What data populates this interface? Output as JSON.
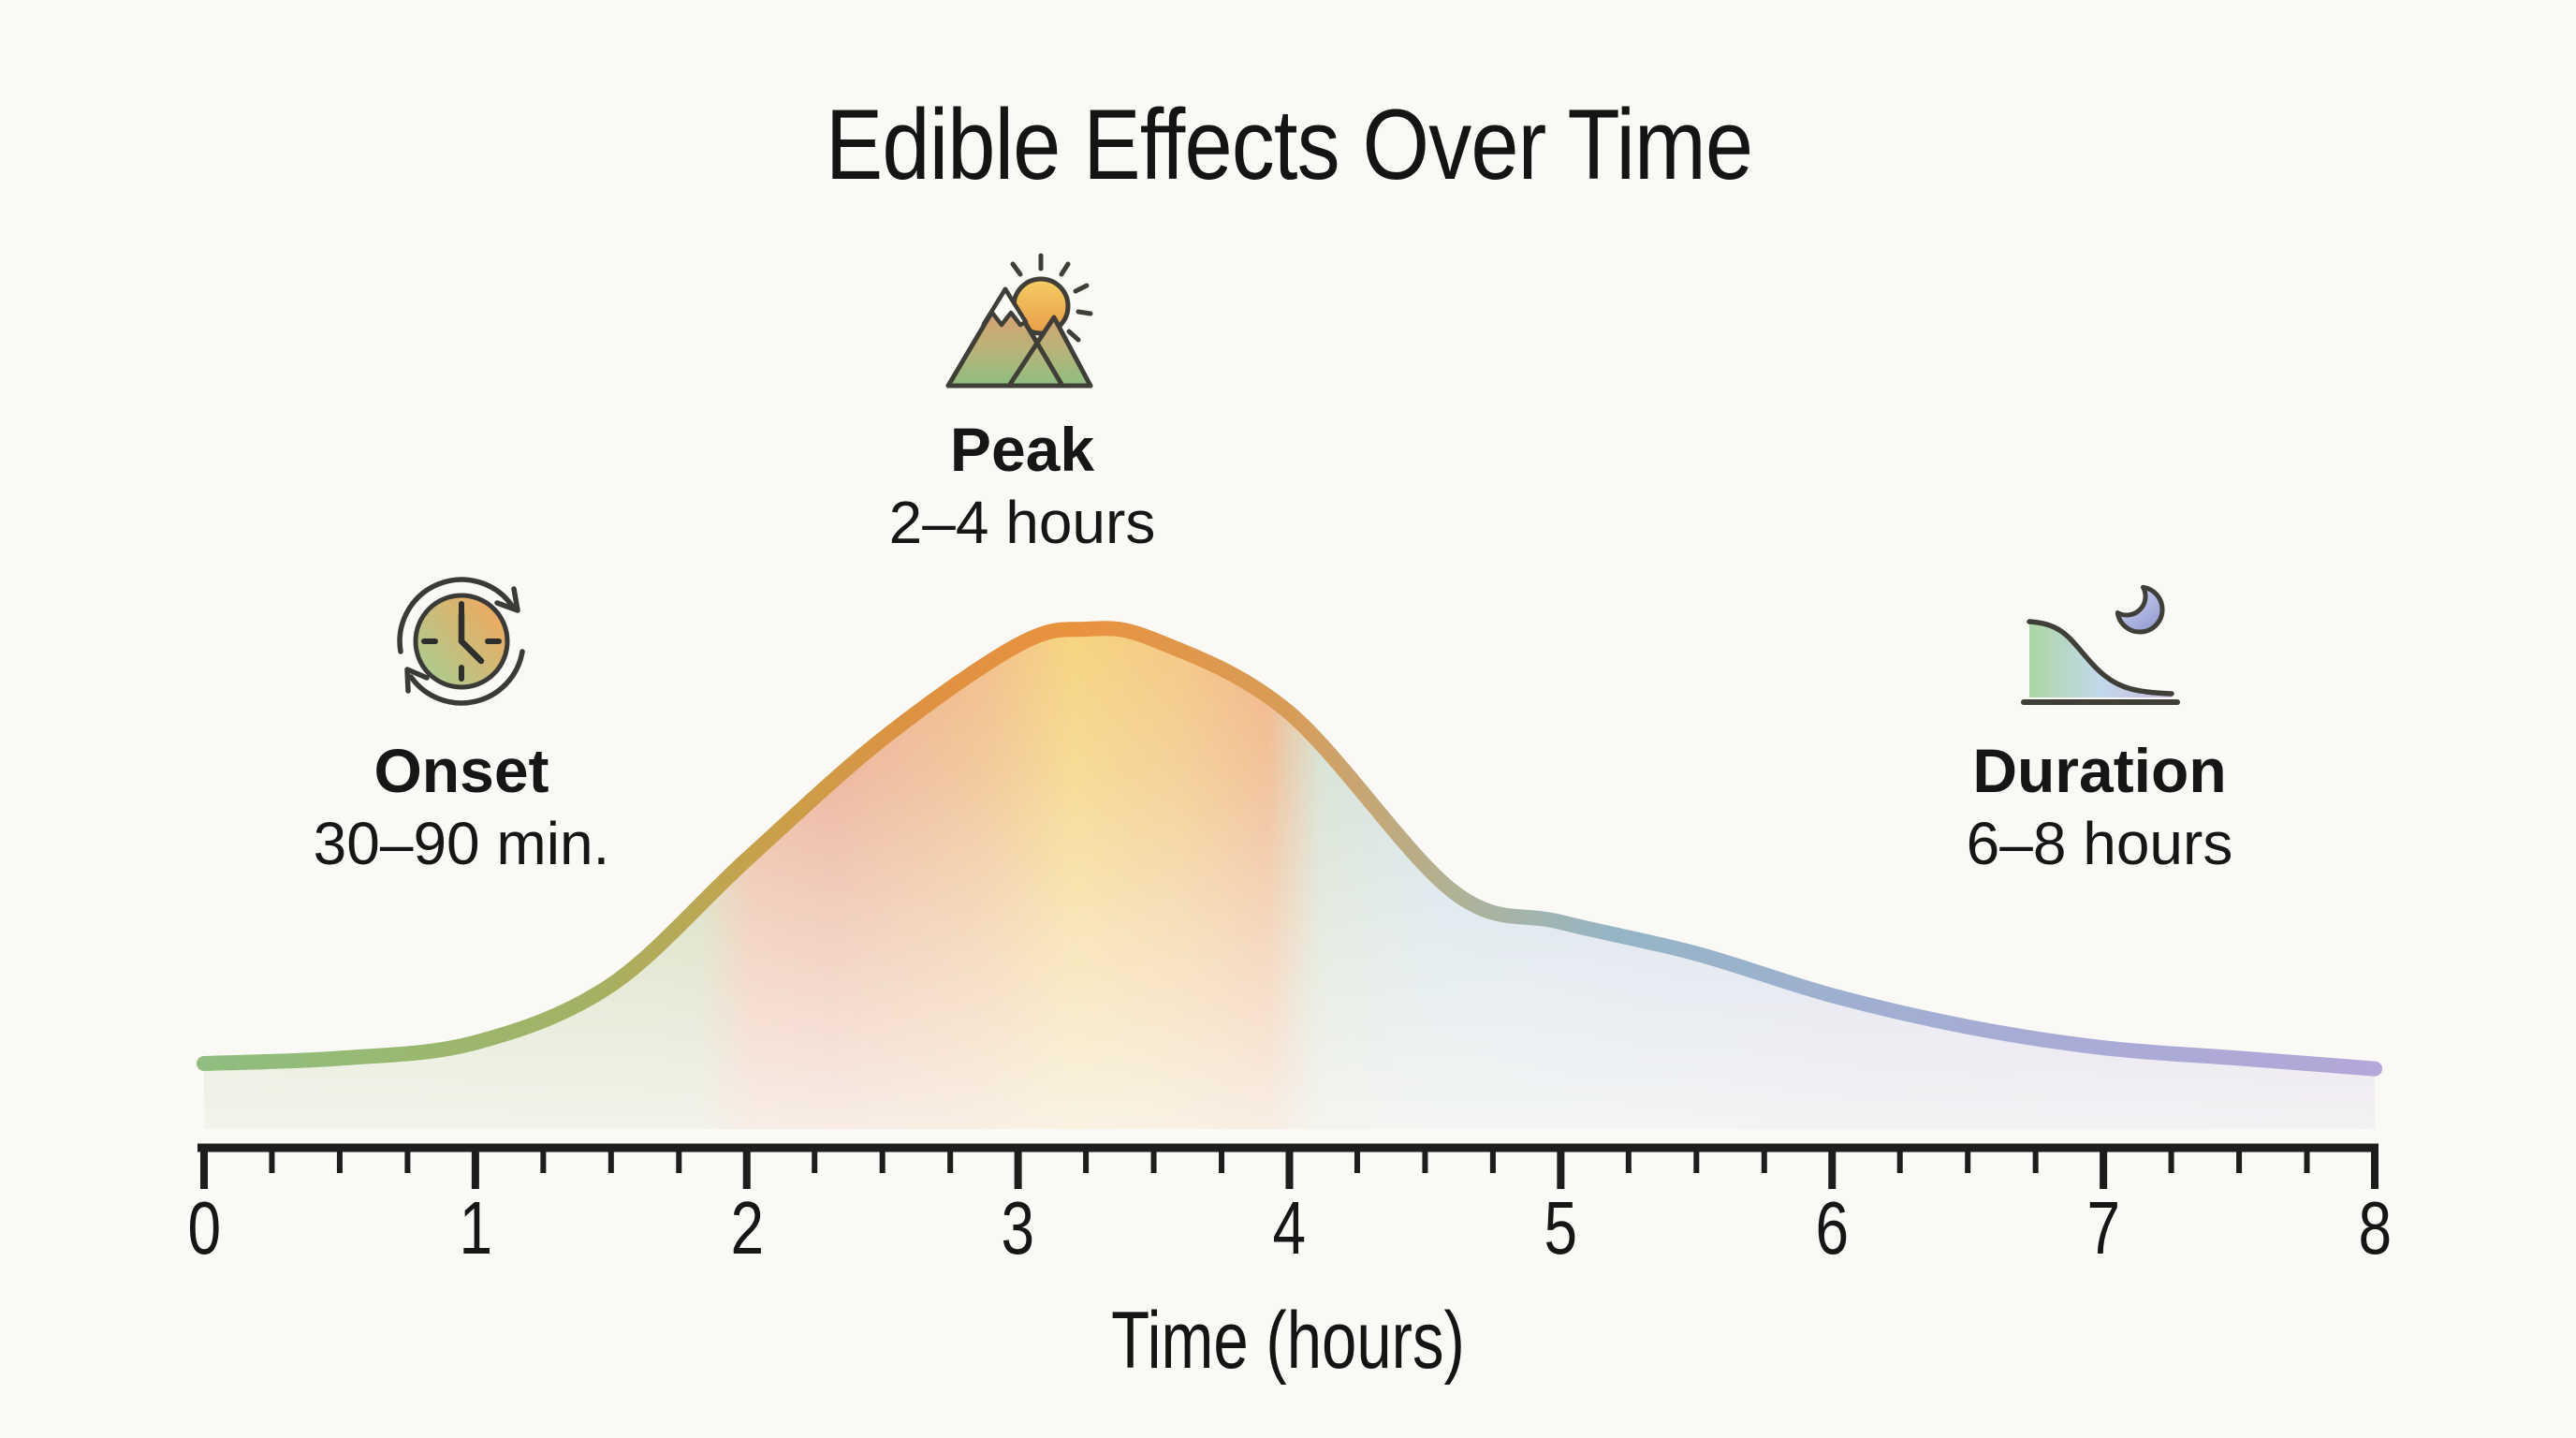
{
  "title": "Edible Effects Over Time",
  "colors": {
    "background": "#faf9f6",
    "text": "#1c1c1c",
    "axis": "#1d1d1d",
    "icon_outline": "#3a3a36"
  },
  "annotations": {
    "onset": {
      "label": "Onset",
      "value": "30–90 min.",
      "icon": "cycle-clock-icon"
    },
    "peak": {
      "label": "Peak",
      "value": "2–4 hours",
      "icon": "mountain-sun-icon"
    },
    "duration": {
      "label": "Duration",
      "value": "6–8 hours",
      "icon": "moon-decline-icon"
    }
  },
  "chart_data": {
    "type": "area",
    "title": "Edible Effects Over Time",
    "xlabel": "Time (hours)",
    "ylabel": "",
    "xlim": [
      0,
      8
    ],
    "x_ticks": [
      0,
      1,
      2,
      3,
      4,
      5,
      6,
      7,
      8
    ],
    "minor_ticks_per_interval": 3,
    "grid": false,
    "legend": false,
    "peak_time_hours": 3.25,
    "phases": [
      {
        "name": "Onset",
        "range": "30–90 min.",
        "window_hours": [
          0,
          1.5
        ]
      },
      {
        "name": "Peak",
        "range": "2–4 hours",
        "window_hours": [
          2,
          4
        ]
      },
      {
        "name": "Duration",
        "range": "6–8 hours",
        "window_hours": [
          6,
          8
        ]
      }
    ],
    "series": [
      {
        "name": "effect-intensity-percent-of-peak",
        "x": [
          0,
          0.5,
          1,
          1.5,
          2,
          2.5,
          3,
          3.25,
          3.5,
          4,
          4.6,
          5,
          5.5,
          6,
          6.5,
          7,
          7.5,
          8
        ],
        "values": [
          17,
          18,
          21,
          32,
          56,
          79,
          97,
          100,
          98,
          84,
          50,
          44,
          38,
          30,
          24,
          20,
          18,
          16
        ]
      }
    ],
    "stroke_gradient": [
      {
        "t": 0.0,
        "c": "#8fbe80"
      },
      {
        "t": 1.4,
        "c": "#a3b264"
      },
      {
        "t": 2.0,
        "c": "#c5a24c"
      },
      {
        "t": 2.6,
        "c": "#dd9241"
      },
      {
        "t": 3.2,
        "c": "#e8923e"
      },
      {
        "t": 4.0,
        "c": "#d99c58"
      },
      {
        "t": 4.6,
        "c": "#b0b295"
      },
      {
        "t": 5.2,
        "c": "#95b5c6"
      },
      {
        "t": 6.4,
        "c": "#a4add4"
      },
      {
        "t": 8.0,
        "c": "#b4a7d9"
      }
    ],
    "fill_gradient": [
      {
        "t": 0.0,
        "c": "#c7d7ac"
      },
      {
        "t": 1.82,
        "c": "#c3d1a2"
      },
      {
        "t": 2.02,
        "c": "#eca98a"
      },
      {
        "t": 2.32,
        "c": "#e9a183"
      },
      {
        "t": 2.88,
        "c": "#f0b87c"
      },
      {
        "t": 3.2,
        "c": "#f6d072"
      },
      {
        "t": 3.6,
        "c": "#f3c277"
      },
      {
        "t": 3.92,
        "c": "#efae7a"
      },
      {
        "t": 4.12,
        "c": "#cedcca"
      },
      {
        "t": 4.56,
        "c": "#c9dde9"
      },
      {
        "t": 5.6,
        "c": "#c9d4ea"
      },
      {
        "t": 6.72,
        "c": "#cac9e7"
      },
      {
        "t": 8.0,
        "c": "#cec2e5"
      }
    ]
  }
}
